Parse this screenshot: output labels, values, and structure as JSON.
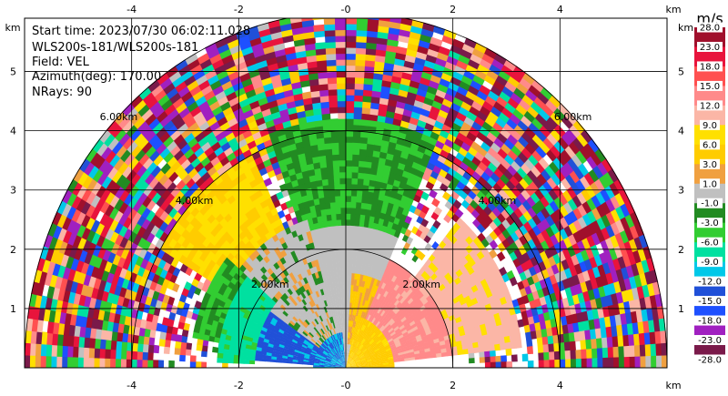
{
  "info": {
    "start_time": "Start time: 2023/07/30 06:02:11.028",
    "instrument": "WLS200s-181/WLS200s-181",
    "field": "Field: VEL",
    "azimuth": "Azimuth(deg): 170.00",
    "nrays": "NRays: 90"
  },
  "colorbar": {
    "unit": "m/s",
    "labels": [
      "28.0",
      "23.0",
      "18.0",
      "15.0",
      "12.0",
      "9.0",
      "6.0",
      "3.0",
      "1.0",
      "-1.0",
      "-3.0",
      "-6.0",
      "-9.0",
      "-12.0",
      "-15.0",
      "-18.0",
      "-23.0",
      "-28.0"
    ],
    "colors": [
      "#a0102c",
      "#e8143c",
      "#ff5050",
      "#ff8a8a",
      "#fbb6a6",
      "#ffe000",
      "#ffcc00",
      "#f0a040",
      "#c0c0c0",
      "#228b22",
      "#32cd32",
      "#00e0a0",
      "#00c8e8",
      "#2050d8",
      "#1e50ff",
      "#a020c0",
      "#7a1a4a"
    ]
  },
  "chart_data": {
    "type": "heatmap",
    "description_free": true,
    "x_unit": "km",
    "y_unit": "km",
    "xlim": [
      -6.0,
      6.0
    ],
    "ylim": [
      0.0,
      5.9
    ],
    "x_ticks": [
      "-4",
      "-2",
      "-0",
      "2",
      "4"
    ],
    "y_ticks": [
      "1",
      "2",
      "3",
      "4",
      "5"
    ],
    "x_tick_values": [
      -4,
      -2,
      0,
      2,
      4
    ],
    "y_tick_values": [
      1,
      2,
      3,
      4,
      5
    ],
    "range_rings_km": [
      2,
      4,
      6
    ],
    "ring_labels": [
      "2.00km",
      "4.00km",
      "6.00km"
    ],
    "max_range_km": 6.0,
    "field": "VEL",
    "sectors": [
      {
        "az_from": -90,
        "az_to": -5,
        "r_from": 0.0,
        "r_to": 0.6,
        "value": -12
      },
      {
        "az_from": -85,
        "az_to": -55,
        "r_from": 0.6,
        "r_to": 1.7,
        "value": -13
      },
      {
        "az_from": -88,
        "az_to": -50,
        "r_from": 1.7,
        "r_to": 2.4,
        "value": -7
      },
      {
        "az_from": -80,
        "az_to": -50,
        "r_from": 2.4,
        "r_to": 2.9,
        "value": -3
      },
      {
        "az_from": -55,
        "az_to": -15,
        "r_from": 0.6,
        "r_to": 2.6,
        "value": 0
      },
      {
        "az_from": 15,
        "az_to": 90,
        "r_from": 0.0,
        "r_to": 0.9,
        "value": 5
      },
      {
        "az_from": 25,
        "az_to": 85,
        "r_from": 0.9,
        "r_to": 2.0,
        "value": 13
      },
      {
        "az_from": 5,
        "az_to": 45,
        "r_from": 0.4,
        "r_to": 1.6,
        "value": 3
      },
      {
        "az_from": 40,
        "az_to": 85,
        "r_from": 2.0,
        "r_to": 3.3,
        "value": 10
      },
      {
        "az_from": -20,
        "az_to": 25,
        "r_from": 2.4,
        "r_to": 4.2,
        "value": -3
      },
      {
        "az_from": -60,
        "az_to": -25,
        "r_from": 2.6,
        "r_to": 4.0,
        "value": 6
      }
    ]
  }
}
